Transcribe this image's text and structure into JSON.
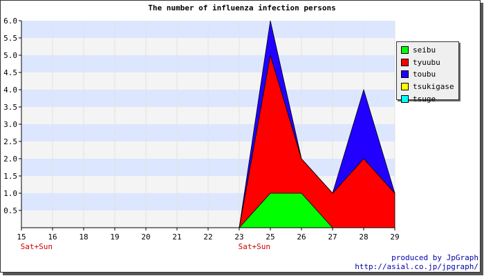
{
  "chart_data": {
    "type": "area",
    "stacked": true,
    "title": "The number of influenza infection persons",
    "categories": [
      "15",
      "16",
      "18",
      "19",
      "20",
      "21",
      "22",
      "23",
      "25",
      "26",
      "27",
      "28",
      "29"
    ],
    "weekend_labels": [
      "Sat+Sun",
      "",
      "",
      "",
      "",
      "",
      "",
      "Sat+Sun",
      "",
      "",
      "",
      "",
      ""
    ],
    "ylim": [
      0,
      6.0
    ],
    "yticks": [
      "0.5",
      "1.0",
      "1.5",
      "2.0",
      "2.5",
      "3.0",
      "3.5",
      "4.0",
      "4.5",
      "5.0",
      "5.5",
      "6.0"
    ],
    "series": [
      {
        "name": "seibu",
        "color": "#00ff00",
        "values": [
          0,
          0,
          0,
          0,
          0,
          0,
          0,
          0,
          1,
          1,
          0,
          0,
          0
        ]
      },
      {
        "name": "tyuubu",
        "color": "#ff0000",
        "values": [
          0,
          0,
          0,
          0,
          0,
          0,
          0,
          0,
          4,
          1,
          1,
          2,
          1
        ]
      },
      {
        "name": "toubu",
        "color": "#2200ff",
        "values": [
          0,
          0,
          0,
          0,
          0,
          0,
          0,
          0,
          1,
          0,
          0,
          2,
          0
        ]
      },
      {
        "name": "tsukigase",
        "color": "#ffff00",
        "values": [
          0,
          0,
          0,
          0,
          0,
          0,
          0,
          0,
          0,
          0,
          0,
          0,
          0
        ]
      },
      {
        "name": "tsuge",
        "color": "#00ffff",
        "values": [
          0,
          0,
          0,
          0,
          0,
          0,
          0,
          0,
          0,
          0,
          0,
          0,
          0
        ]
      }
    ],
    "grid": true,
    "legend_position": "right-top",
    "colors": {
      "band_a": "#dce6ff",
      "band_b": "#f4f4f4",
      "weekend_label": "#cc0000"
    }
  },
  "footer": {
    "line1": "produced by JpGraph",
    "line2": "http://asial.co.jp/jpgraph/"
  }
}
